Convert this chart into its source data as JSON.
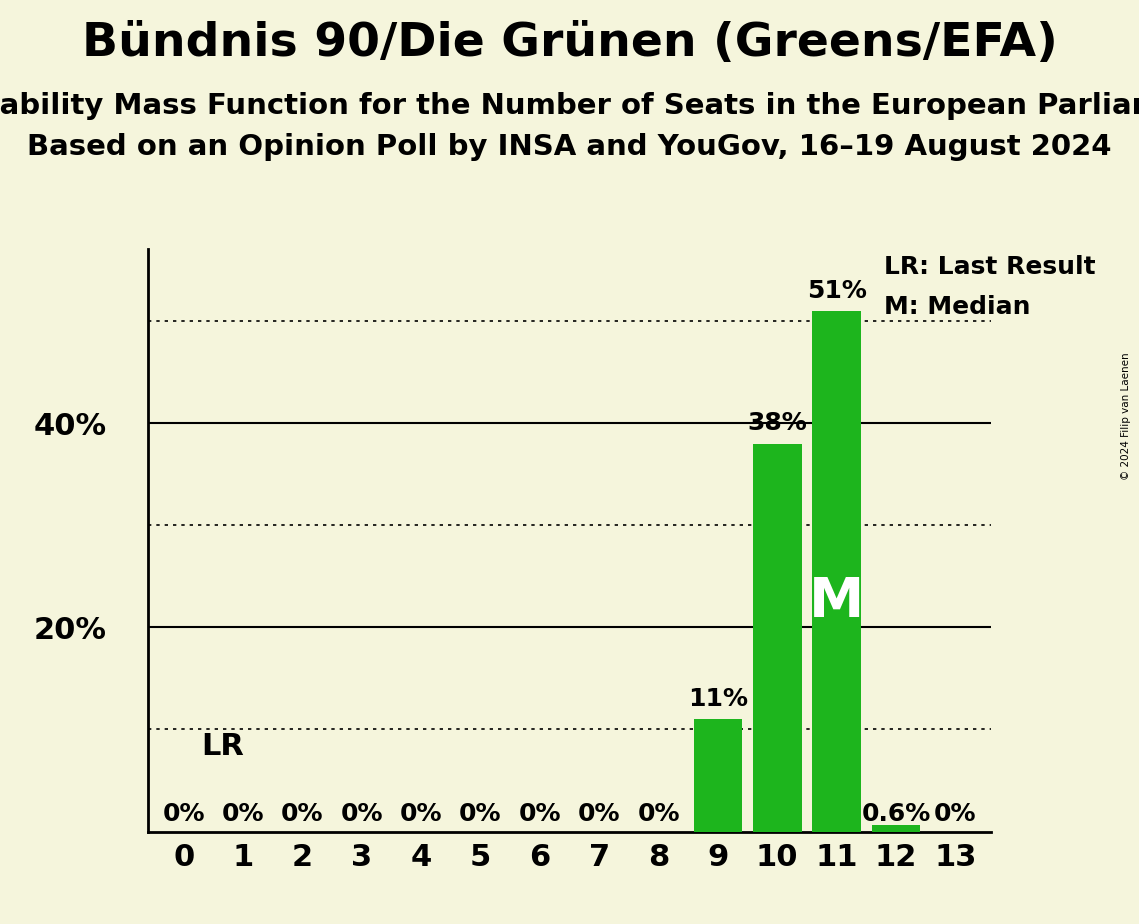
{
  "title": "Bündnis 90/Die Grünen (Greens/EFA)",
  "subtitle1": "Probability Mass Function for the Number of Seats in the European Parliament",
  "subtitle2": "Based on an Opinion Poll by INSA and YouGov, 16–19 August 2024",
  "copyright": "© 2024 Filip van Laenen",
  "seats": [
    0,
    1,
    2,
    3,
    4,
    5,
    6,
    7,
    8,
    9,
    10,
    11,
    12,
    13
  ],
  "probabilities": [
    0,
    0,
    0,
    0,
    0,
    0,
    0,
    0,
    0,
    11,
    38,
    51,
    0.6,
    0
  ],
  "bar_labels": [
    "0%",
    "0%",
    "0%",
    "0%",
    "0%",
    "0%",
    "0%",
    "0%",
    "0%",
    "11%",
    "38%",
    "51%",
    "0.6%",
    "0%"
  ],
  "bar_color": "#1db51d",
  "median_seat": 11,
  "background_color": "#f5f5dc",
  "ylim": [
    0,
    57
  ],
  "ytick_positions": [
    20,
    40
  ],
  "ytick_labels": [
    "20%",
    "40%"
  ],
  "solid_gridlines": [
    20,
    40
  ],
  "dotted_gridlines": [
    10,
    30,
    50
  ],
  "legend_lr": "LR: Last Result",
  "legend_m": "M: Median",
  "title_fontsize": 34,
  "subtitle_fontsize": 21,
  "label_fontsize": 18,
  "tick_fontsize": 22,
  "lr_label_fontsize": 22,
  "m_label_fontsize": 40,
  "legend_fontsize": 18
}
